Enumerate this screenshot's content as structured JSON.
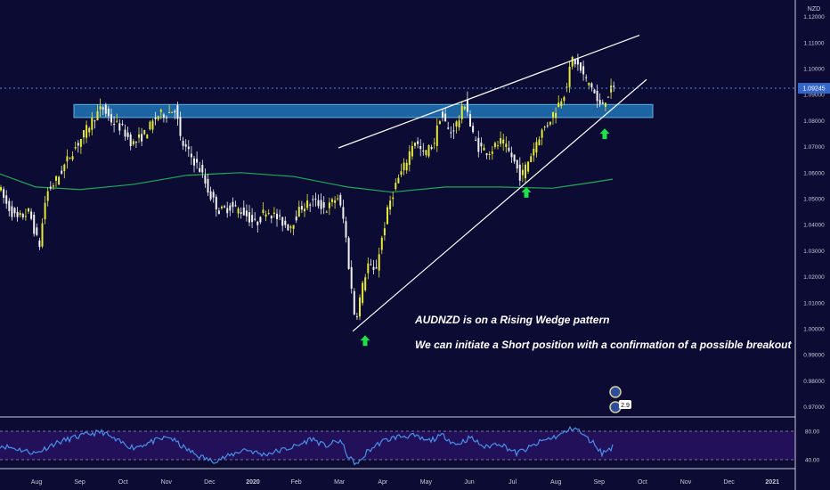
{
  "chart_data": {
    "type": "candlestick",
    "symbol": "AUDNZD",
    "currency_label": "NZD",
    "last_price_label": "1.09245",
    "last_price": 1.09245,
    "ylim": [
      0.9655,
      1.122
    ],
    "price_ticks": [
      {
        "label": "1.12000",
        "value": 1.12
      },
      {
        "label": "1.11000",
        "value": 1.11
      },
      {
        "label": "1.10000",
        "value": 1.1
      },
      {
        "label": "1.09000",
        "value": 1.09
      },
      {
        "label": "1.08000",
        "value": 1.08
      },
      {
        "label": "1.07000",
        "value": 1.07
      },
      {
        "label": "1.06000",
        "value": 1.06
      },
      {
        "label": "1.05000",
        "value": 1.05
      },
      {
        "label": "1.04000",
        "value": 1.04
      },
      {
        "label": "1.03000",
        "value": 1.03
      },
      {
        "label": "1.02000",
        "value": 1.02
      },
      {
        "label": "1.01000",
        "value": 1.01
      },
      {
        "label": "1.00000",
        "value": 1.0
      },
      {
        "label": "0.99000",
        "value": 0.99
      },
      {
        "label": "0.98000",
        "value": 0.98
      },
      {
        "label": "0.97000",
        "value": 0.97
      }
    ],
    "time_labels": [
      "Aug",
      "Sep",
      "Oct",
      "Nov",
      "Dec",
      "2020",
      "Feb",
      "Mar",
      "Apr",
      "May",
      "Jun",
      "Jul",
      "Aug",
      "Sep",
      "Oct",
      "Nov",
      "Dec",
      "2021"
    ],
    "price_path": [
      {
        "t": 0,
        "v": 1.056
      },
      {
        "t": 10,
        "v": 1.048
      },
      {
        "t": 22,
        "v": 1.042
      },
      {
        "t": 36,
        "v": 1.045
      },
      {
        "t": 47,
        "v": 1.031
      },
      {
        "t": 55,
        "v": 1.052
      },
      {
        "t": 68,
        "v": 1.058
      },
      {
        "t": 82,
        "v": 1.067
      },
      {
        "t": 96,
        "v": 1.074
      },
      {
        "t": 108,
        "v": 1.081
      },
      {
        "t": 118,
        "v": 1.085
      },
      {
        "t": 128,
        "v": 1.08
      },
      {
        "t": 140,
        "v": 1.077
      },
      {
        "t": 152,
        "v": 1.071
      },
      {
        "t": 166,
        "v": 1.075
      },
      {
        "t": 180,
        "v": 1.082
      },
      {
        "t": 192,
        "v": 1.083
      },
      {
        "t": 200,
        "v": 1.085
      },
      {
        "t": 206,
        "v": 1.072
      },
      {
        "t": 216,
        "v": 1.067
      },
      {
        "t": 228,
        "v": 1.061
      },
      {
        "t": 238,
        "v": 1.052
      },
      {
        "t": 250,
        "v": 1.045
      },
      {
        "t": 262,
        "v": 1.047
      },
      {
        "t": 276,
        "v": 1.045
      },
      {
        "t": 290,
        "v": 1.04
      },
      {
        "t": 302,
        "v": 1.046
      },
      {
        "t": 316,
        "v": 1.042
      },
      {
        "t": 328,
        "v": 1.039
      },
      {
        "t": 342,
        "v": 1.047
      },
      {
        "t": 356,
        "v": 1.049
      },
      {
        "t": 370,
        "v": 1.046
      },
      {
        "t": 382,
        "v": 1.051
      },
      {
        "t": 390,
        "v": 1.04
      },
      {
        "t": 396,
        "v": 1.02
      },
      {
        "t": 402,
        "v": 1.003
      },
      {
        "t": 408,
        "v": 1.013
      },
      {
        "t": 416,
        "v": 1.025
      },
      {
        "t": 424,
        "v": 1.021
      },
      {
        "t": 432,
        "v": 1.035
      },
      {
        "t": 440,
        "v": 1.048
      },
      {
        "t": 448,
        "v": 1.056
      },
      {
        "t": 458,
        "v": 1.063
      },
      {
        "t": 468,
        "v": 1.073
      },
      {
        "t": 478,
        "v": 1.067
      },
      {
        "t": 490,
        "v": 1.071
      },
      {
        "t": 498,
        "v": 1.083
      },
      {
        "t": 508,
        "v": 1.075
      },
      {
        "t": 518,
        "v": 1.08
      },
      {
        "t": 526,
        "v": 1.088
      },
      {
        "t": 532,
        "v": 1.076
      },
      {
        "t": 540,
        "v": 1.07
      },
      {
        "t": 552,
        "v": 1.068
      },
      {
        "t": 566,
        "v": 1.072
      },
      {
        "t": 578,
        "v": 1.066
      },
      {
        "t": 588,
        "v": 1.058
      },
      {
        "t": 598,
        "v": 1.066
      },
      {
        "t": 608,
        "v": 1.074
      },
      {
        "t": 618,
        "v": 1.079
      },
      {
        "t": 628,
        "v": 1.085
      },
      {
        "t": 638,
        "v": 1.092
      },
      {
        "t": 646,
        "v": 1.104
      },
      {
        "t": 652,
        "v": 1.101
      },
      {
        "t": 660,
        "v": 1.096
      },
      {
        "t": 668,
        "v": 1.093
      },
      {
        "t": 676,
        "v": 1.085
      },
      {
        "t": 682,
        "v": 1.088
      },
      {
        "t": 690,
        "v": 1.092
      }
    ],
    "moving_average": [
      {
        "t": 0,
        "v": 1.0595
      },
      {
        "t": 40,
        "v": 1.0545
      },
      {
        "t": 90,
        "v": 1.0535
      },
      {
        "t": 150,
        "v": 1.0555
      },
      {
        "t": 210,
        "v": 1.059
      },
      {
        "t": 270,
        "v": 1.06
      },
      {
        "t": 330,
        "v": 1.0585
      },
      {
        "t": 390,
        "v": 1.0545
      },
      {
        "t": 440,
        "v": 1.0525
      },
      {
        "t": 500,
        "v": 1.0545
      },
      {
        "t": 560,
        "v": 1.0545
      },
      {
        "t": 620,
        "v": 1.054
      },
      {
        "t": 660,
        "v": 1.056
      },
      {
        "t": 688,
        "v": 1.0575
      }
    ],
    "resistance_zone": {
      "from": 1.0812,
      "to": 1.0862
    },
    "wedge_upper": [
      {
        "t": 380,
        "v": 1.0695
      },
      {
        "t": 718,
        "v": 1.1128
      }
    ],
    "wedge_lower": [
      {
        "t": 396,
        "v": 0.999
      },
      {
        "t": 726,
        "v": 1.0958
      }
    ],
    "signal_arrows": [
      {
        "t": 410,
        "v": 0.9975,
        "direction": "up"
      },
      {
        "t": 591,
        "v": 1.0545,
        "direction": "up"
      },
      {
        "t": 679,
        "v": 1.077,
        "direction": "up"
      }
    ],
    "annotations": [
      "AUDNZD is on a Rising Wedge pattern",
      "We can initiate a Short position with a confirmation of a possible breakout"
    ],
    "event_badge": "2.9",
    "oscillator": {
      "ylim": [
        30,
        95
      ],
      "levels": [
        {
          "label": "80.00",
          "value": 80
        },
        {
          "label": "40.00",
          "value": 40
        }
      ],
      "values": [
        {
          "t": 0,
          "v": 60
        },
        {
          "t": 20,
          "v": 55
        },
        {
          "t": 40,
          "v": 49
        },
        {
          "t": 60,
          "v": 62
        },
        {
          "t": 80,
          "v": 70
        },
        {
          "t": 100,
          "v": 76
        },
        {
          "t": 115,
          "v": 79
        },
        {
          "t": 130,
          "v": 67
        },
        {
          "t": 150,
          "v": 57
        },
        {
          "t": 170,
          "v": 65
        },
        {
          "t": 190,
          "v": 72
        },
        {
          "t": 205,
          "v": 58
        },
        {
          "t": 220,
          "v": 47
        },
        {
          "t": 238,
          "v": 38
        },
        {
          "t": 255,
          "v": 44
        },
        {
          "t": 275,
          "v": 55
        },
        {
          "t": 295,
          "v": 47
        },
        {
          "t": 315,
          "v": 53
        },
        {
          "t": 335,
          "v": 60
        },
        {
          "t": 350,
          "v": 70
        },
        {
          "t": 365,
          "v": 59
        },
        {
          "t": 382,
          "v": 67
        },
        {
          "t": 392,
          "v": 42
        },
        {
          "t": 402,
          "v": 33
        },
        {
          "t": 412,
          "v": 51
        },
        {
          "t": 428,
          "v": 65
        },
        {
          "t": 445,
          "v": 72
        },
        {
          "t": 462,
          "v": 74
        },
        {
          "t": 480,
          "v": 66
        },
        {
          "t": 498,
          "v": 74
        },
        {
          "t": 512,
          "v": 61
        },
        {
          "t": 528,
          "v": 71
        },
        {
          "t": 545,
          "v": 57
        },
        {
          "t": 560,
          "v": 64
        },
        {
          "t": 580,
          "v": 49
        },
        {
          "t": 595,
          "v": 57
        },
        {
          "t": 610,
          "v": 67
        },
        {
          "t": 628,
          "v": 74
        },
        {
          "t": 645,
          "v": 86
        },
        {
          "t": 658,
          "v": 71
        },
        {
          "t": 668,
          "v": 62
        },
        {
          "t": 676,
          "v": 49
        },
        {
          "t": 688,
          "v": 58
        }
      ]
    }
  }
}
